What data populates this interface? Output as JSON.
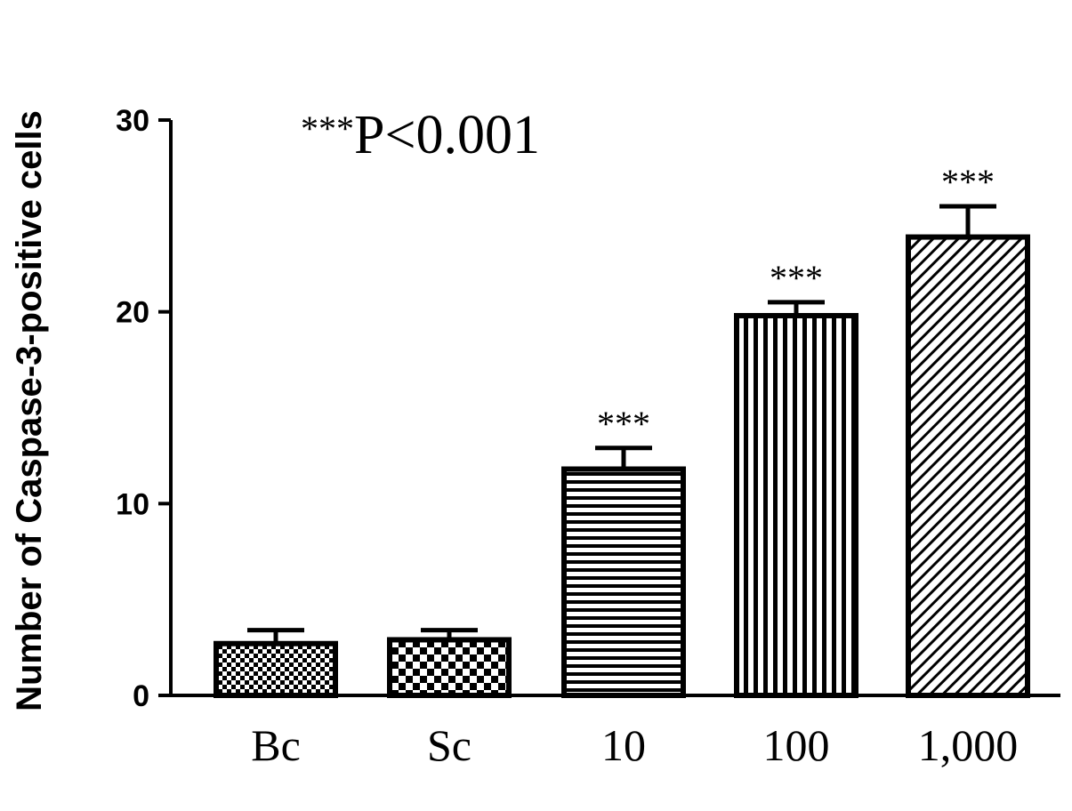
{
  "chart_data": {
    "type": "bar",
    "title": "",
    "xlabel": "",
    "ylabel": "Number of Caspase-3-positive cells",
    "ylim": [
      0,
      30
    ],
    "yticks": [
      0,
      10,
      20,
      30
    ],
    "ytick_labels": [
      "0",
      "10",
      "20",
      "30"
    ],
    "categories": [
      "Bc",
      "Sc",
      "10",
      "100",
      "1,000"
    ],
    "values": [
      2.7,
      2.9,
      11.8,
      19.8,
      23.9
    ],
    "errors": [
      0.7,
      0.5,
      1.1,
      0.7,
      1.6
    ],
    "significance": [
      "",
      "",
      "***",
      "***",
      "***"
    ],
    "patterns": [
      "fine-checker",
      "checker",
      "horizontal",
      "vertical",
      "diagonal"
    ],
    "annotation_stars": "***",
    "annotation_text": "P<0.001",
    "grid": false,
    "legend": "none"
  }
}
